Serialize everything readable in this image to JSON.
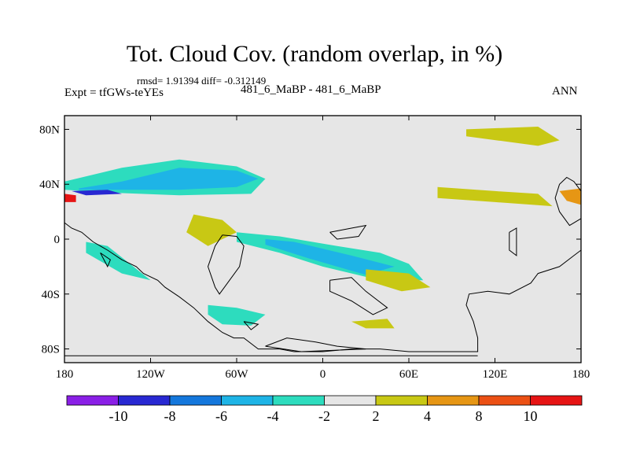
{
  "chart_data": {
    "type": "contour-map",
    "title": "Tot. Cloud Cov. (random overlap, in %)",
    "stats": "rmsd= 1.91394  diff= -0.312149",
    "left_label": "Expt = tfGWs-teYEs",
    "center_label": "481_6_MaBP - 481_6_MaBP",
    "right_label": "ANN",
    "x_ticks": [
      {
        "value": -180,
        "label": "180"
      },
      {
        "value": -120,
        "label": "120W"
      },
      {
        "value": -60,
        "label": "60W"
      },
      {
        "value": 0,
        "label": "0"
      },
      {
        "value": 60,
        "label": "60E"
      },
      {
        "value": 120,
        "label": "120E"
      },
      {
        "value": 180,
        "label": "180"
      }
    ],
    "y_ticks": [
      {
        "value": 80,
        "label": "80N"
      },
      {
        "value": 40,
        "label": "40N"
      },
      {
        "value": 0,
        "label": "0"
      },
      {
        "value": -40,
        "label": "40S"
      },
      {
        "value": -80,
        "label": "80S"
      }
    ],
    "xlim": [
      -180,
      180
    ],
    "ylim": [
      -90,
      90
    ],
    "colorbar": {
      "bins": [
        {
          "color": "#8a1fe6",
          "lo": null,
          "hi": -10
        },
        {
          "color": "#2828d2",
          "lo": -10,
          "hi": -8
        },
        {
          "color": "#1477dc",
          "lo": -8,
          "hi": -6
        },
        {
          "color": "#1eb4e6",
          "lo": -6,
          "hi": -4
        },
        {
          "color": "#2ddcbe",
          "lo": -4,
          "hi": -2
        },
        {
          "color": "#e6e6e6",
          "lo": -2,
          "hi": 2
        },
        {
          "color": "#c8c814",
          "lo": 2,
          "hi": 4
        },
        {
          "color": "#e69614",
          "lo": 4,
          "hi": 8
        },
        {
          "color": "#eb5014",
          "lo": 8,
          "hi": 10
        },
        {
          "color": "#e61414",
          "lo": 10,
          "hi": null
        }
      ],
      "labels": [
        "-10",
        "-8",
        "-6",
        "-4",
        "-2",
        "2",
        "4",
        "8",
        "10"
      ]
    },
    "regions": [
      {
        "level": -4,
        "name": "n-pacific-band",
        "lon": [
          [
            -180,
            -140,
            -100,
            -60,
            -40,
            -50,
            -100,
            -150,
            -180
          ]
        ],
        "lat": [
          [
            42,
            52,
            58,
            53,
            44,
            33,
            32,
            34,
            36
          ]
        ]
      },
      {
        "level": -6,
        "name": "n-pacific-core",
        "lon": [
          [
            -170,
            -140,
            -100,
            -60,
            -45,
            -60,
            -100,
            -150,
            -170
          ]
        ],
        "lat": [
          [
            37,
            42,
            52,
            50,
            44,
            38,
            36,
            36,
            36
          ]
        ]
      },
      {
        "level": -10,
        "name": "n-pacific-min",
        "lon": [
          [
            -175,
            -150,
            -140,
            -165
          ]
        ],
        "lat": [
          [
            35,
            36,
            33,
            32
          ]
        ]
      },
      {
        "level": -4,
        "name": "east-pacific-eq",
        "lon": [
          [
            -60,
            -30,
            10,
            40,
            60,
            70,
            40,
            0,
            -30,
            -60
          ]
        ],
        "lat": [
          [
            5,
            2,
            -5,
            -10,
            -18,
            -30,
            -30,
            -20,
            -10,
            -2
          ]
        ]
      },
      {
        "level": -6,
        "name": "east-pacific-core",
        "lon": [
          [
            -40,
            -20,
            20,
            50,
            30,
            -10,
            -40
          ]
        ],
        "lat": [
          [
            0,
            -2,
            -12,
            -20,
            -26,
            -14,
            -4
          ]
        ]
      },
      {
        "level": -4,
        "name": "sw-pacific",
        "lon": [
          [
            -165,
            -150,
            -120,
            -140,
            -165
          ]
        ],
        "lat": [
          [
            -2,
            -5,
            -30,
            -25,
            -10
          ]
        ]
      },
      {
        "level": -4,
        "name": "south-atlantic",
        "lon": [
          [
            -80,
            -60,
            -40,
            -50,
            -70,
            -80
          ]
        ],
        "lat": [
          [
            -48,
            -50,
            -55,
            -63,
            -62,
            -55
          ]
        ]
      },
      {
        "level": 2,
        "name": "central-pacific",
        "lon": [
          [
            -90,
            -70,
            -60,
            -80,
            -95
          ]
        ],
        "lat": [
          [
            18,
            14,
            5,
            -5,
            5
          ]
        ]
      },
      {
        "level": 2,
        "name": "se-pacific",
        "lon": [
          [
            30,
            60,
            75,
            55,
            30
          ]
        ],
        "lat": [
          [
            -22,
            -25,
            -35,
            -38,
            -30
          ]
        ]
      },
      {
        "level": 2,
        "name": "indian-nh",
        "lon": [
          [
            80,
            120,
            150,
            160,
            120,
            80
          ]
        ],
        "lat": [
          [
            38,
            35,
            33,
            24,
            27,
            30
          ]
        ]
      },
      {
        "level": 2,
        "name": "arctic-east",
        "lon": [
          [
            100,
            150,
            165,
            150,
            100
          ]
        ],
        "lat": [
          [
            80,
            82,
            72,
            68,
            75
          ]
        ]
      },
      {
        "level": 2,
        "name": "s-ocean",
        "lon": [
          [
            20,
            45,
            50,
            30
          ]
        ],
        "lat": [
          [
            -60,
            -58,
            -65,
            -65
          ]
        ]
      },
      {
        "level": 4,
        "name": "japan-hot",
        "lon": [
          [
            165,
            180,
            180,
            170
          ]
        ],
        "lat": [
          [
            35,
            37,
            25,
            28
          ]
        ]
      },
      {
        "level": 10,
        "name": "w-edge-hot",
        "lon": [
          [
            -180,
            -172,
            -172,
            -180
          ]
        ],
        "lat": [
          [
            33,
            32,
            27,
            27
          ]
        ]
      }
    ]
  }
}
